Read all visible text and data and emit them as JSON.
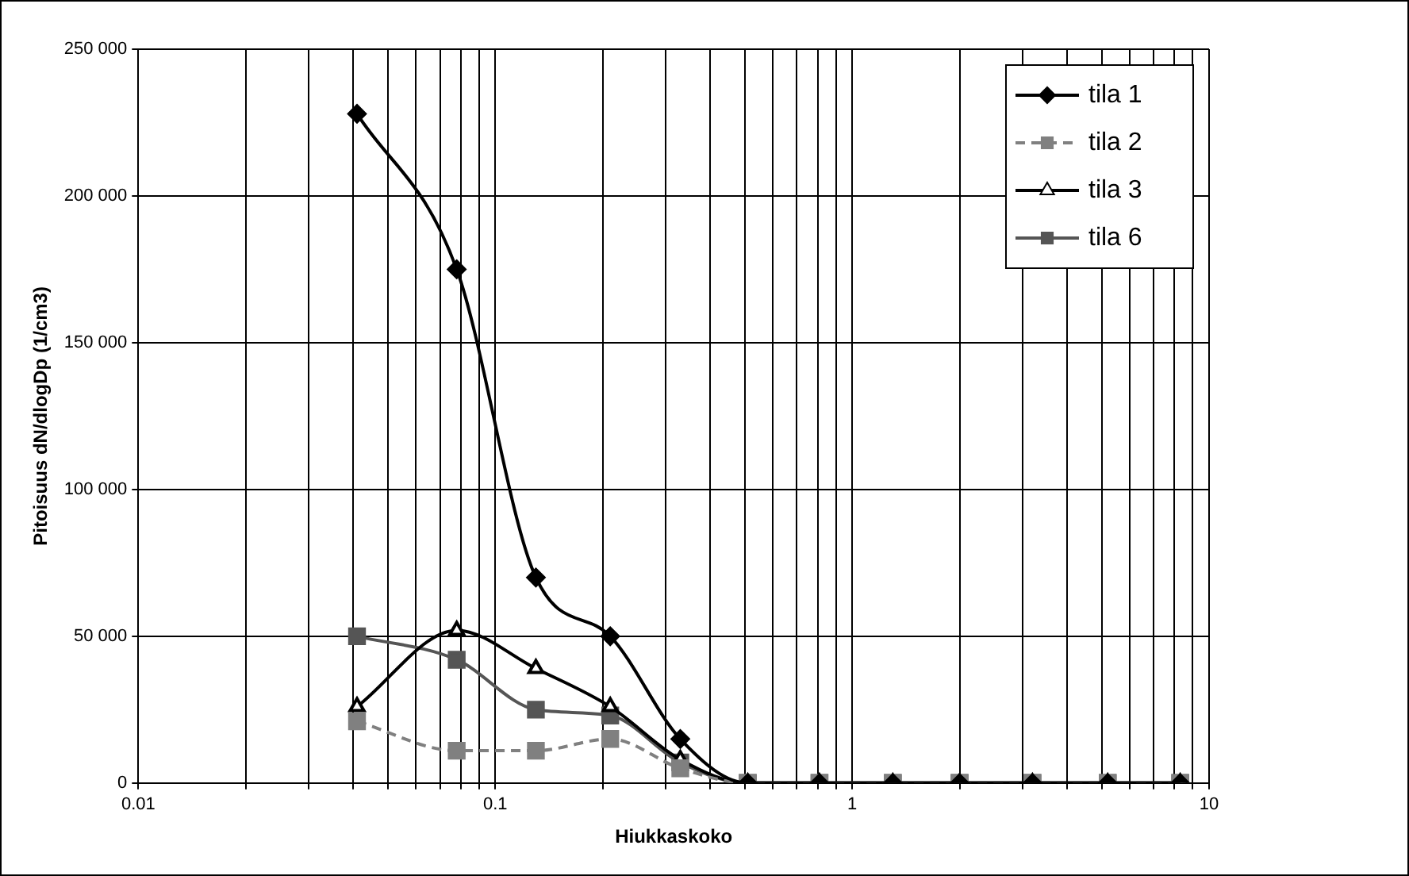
{
  "chart_data": {
    "type": "line",
    "xlabel": "Hiukkaskoko",
    "ylabel": "Pitoisuus dN/dlogDp (1/cm3)",
    "x": [
      0.041,
      0.078,
      0.13,
      0.21,
      0.33,
      0.51,
      0.81,
      1.3,
      2.0,
      3.2,
      5.2,
      8.3
    ],
    "series": [
      {
        "name": "tila 1",
        "color": "#000000",
        "marker": "diamond",
        "line_style": "solid",
        "values": [
          228000,
          175000,
          70000,
          50000,
          15000,
          0,
          0,
          0,
          0,
          0,
          0,
          0
        ]
      },
      {
        "name": "tila 2",
        "color": "#808080",
        "marker": "square",
        "line_style": "dashed",
        "values": [
          21000,
          11000,
          11000,
          15000,
          5000,
          0,
          0,
          0,
          0,
          0,
          0,
          0
        ]
      },
      {
        "name": "tila 3",
        "color": "#000000",
        "marker": "triangle",
        "line_style": "solid",
        "values": [
          26000,
          52000,
          39000,
          26000,
          8000,
          0,
          0,
          0,
          0,
          0,
          0,
          0
        ]
      },
      {
        "name": "tila 6",
        "color": "#555555",
        "marker": "square",
        "line_style": "solid",
        "values": [
          50000,
          42000,
          25000,
          23000,
          7000,
          0,
          0,
          0,
          0,
          0,
          0,
          0
        ]
      }
    ],
    "log": "x",
    "xlim": [
      0.01,
      10
    ],
    "xticks": [
      0.01,
      {
        "value": 0.02,
        "label": null
      },
      {
        "value": 0.03,
        "label": null
      },
      {
        "value": 0.04,
        "label": null
      },
      {
        "value": 0.05,
        "label": null
      },
      {
        "value": 0.06,
        "label": null
      },
      {
        "value": 0.07,
        "label": null
      },
      {
        "value": 0.08,
        "label": null
      },
      {
        "value": 0.09,
        "label": null
      },
      0.1,
      {
        "value": 0.2,
        "label": null
      },
      {
        "value": 0.3,
        "label": null
      },
      {
        "value": 0.4,
        "label": null
      },
      {
        "value": 0.5,
        "label": null
      },
      {
        "value": 0.6,
        "label": null
      },
      {
        "value": 0.7,
        "label": null
      },
      {
        "value": 0.8,
        "label": null
      },
      {
        "value": 0.9,
        "label": null
      },
      1,
      {
        "value": 2,
        "label": null
      },
      {
        "value": 3,
        "label": null
      },
      {
        "value": 4,
        "label": null
      },
      {
        "value": 5,
        "label": null
      },
      {
        "value": 6,
        "label": null
      },
      {
        "value": 7,
        "label": null
      },
      {
        "value": 8,
        "label": null
      },
      {
        "value": 9,
        "label": null
      },
      10
    ],
    "ylim": [
      0,
      250000
    ],
    "yticks": [
      0,
      {
        "value": 50000,
        "label": "50 000"
      },
      {
        "value": 100000,
        "label": "100 000"
      },
      {
        "value": 150000,
        "label": "150 000"
      },
      {
        "value": 200000,
        "label": "200 000"
      },
      {
        "value": 250000,
        "label": "250 000"
      }
    ],
    "grid": true,
    "legend": "top right"
  }
}
